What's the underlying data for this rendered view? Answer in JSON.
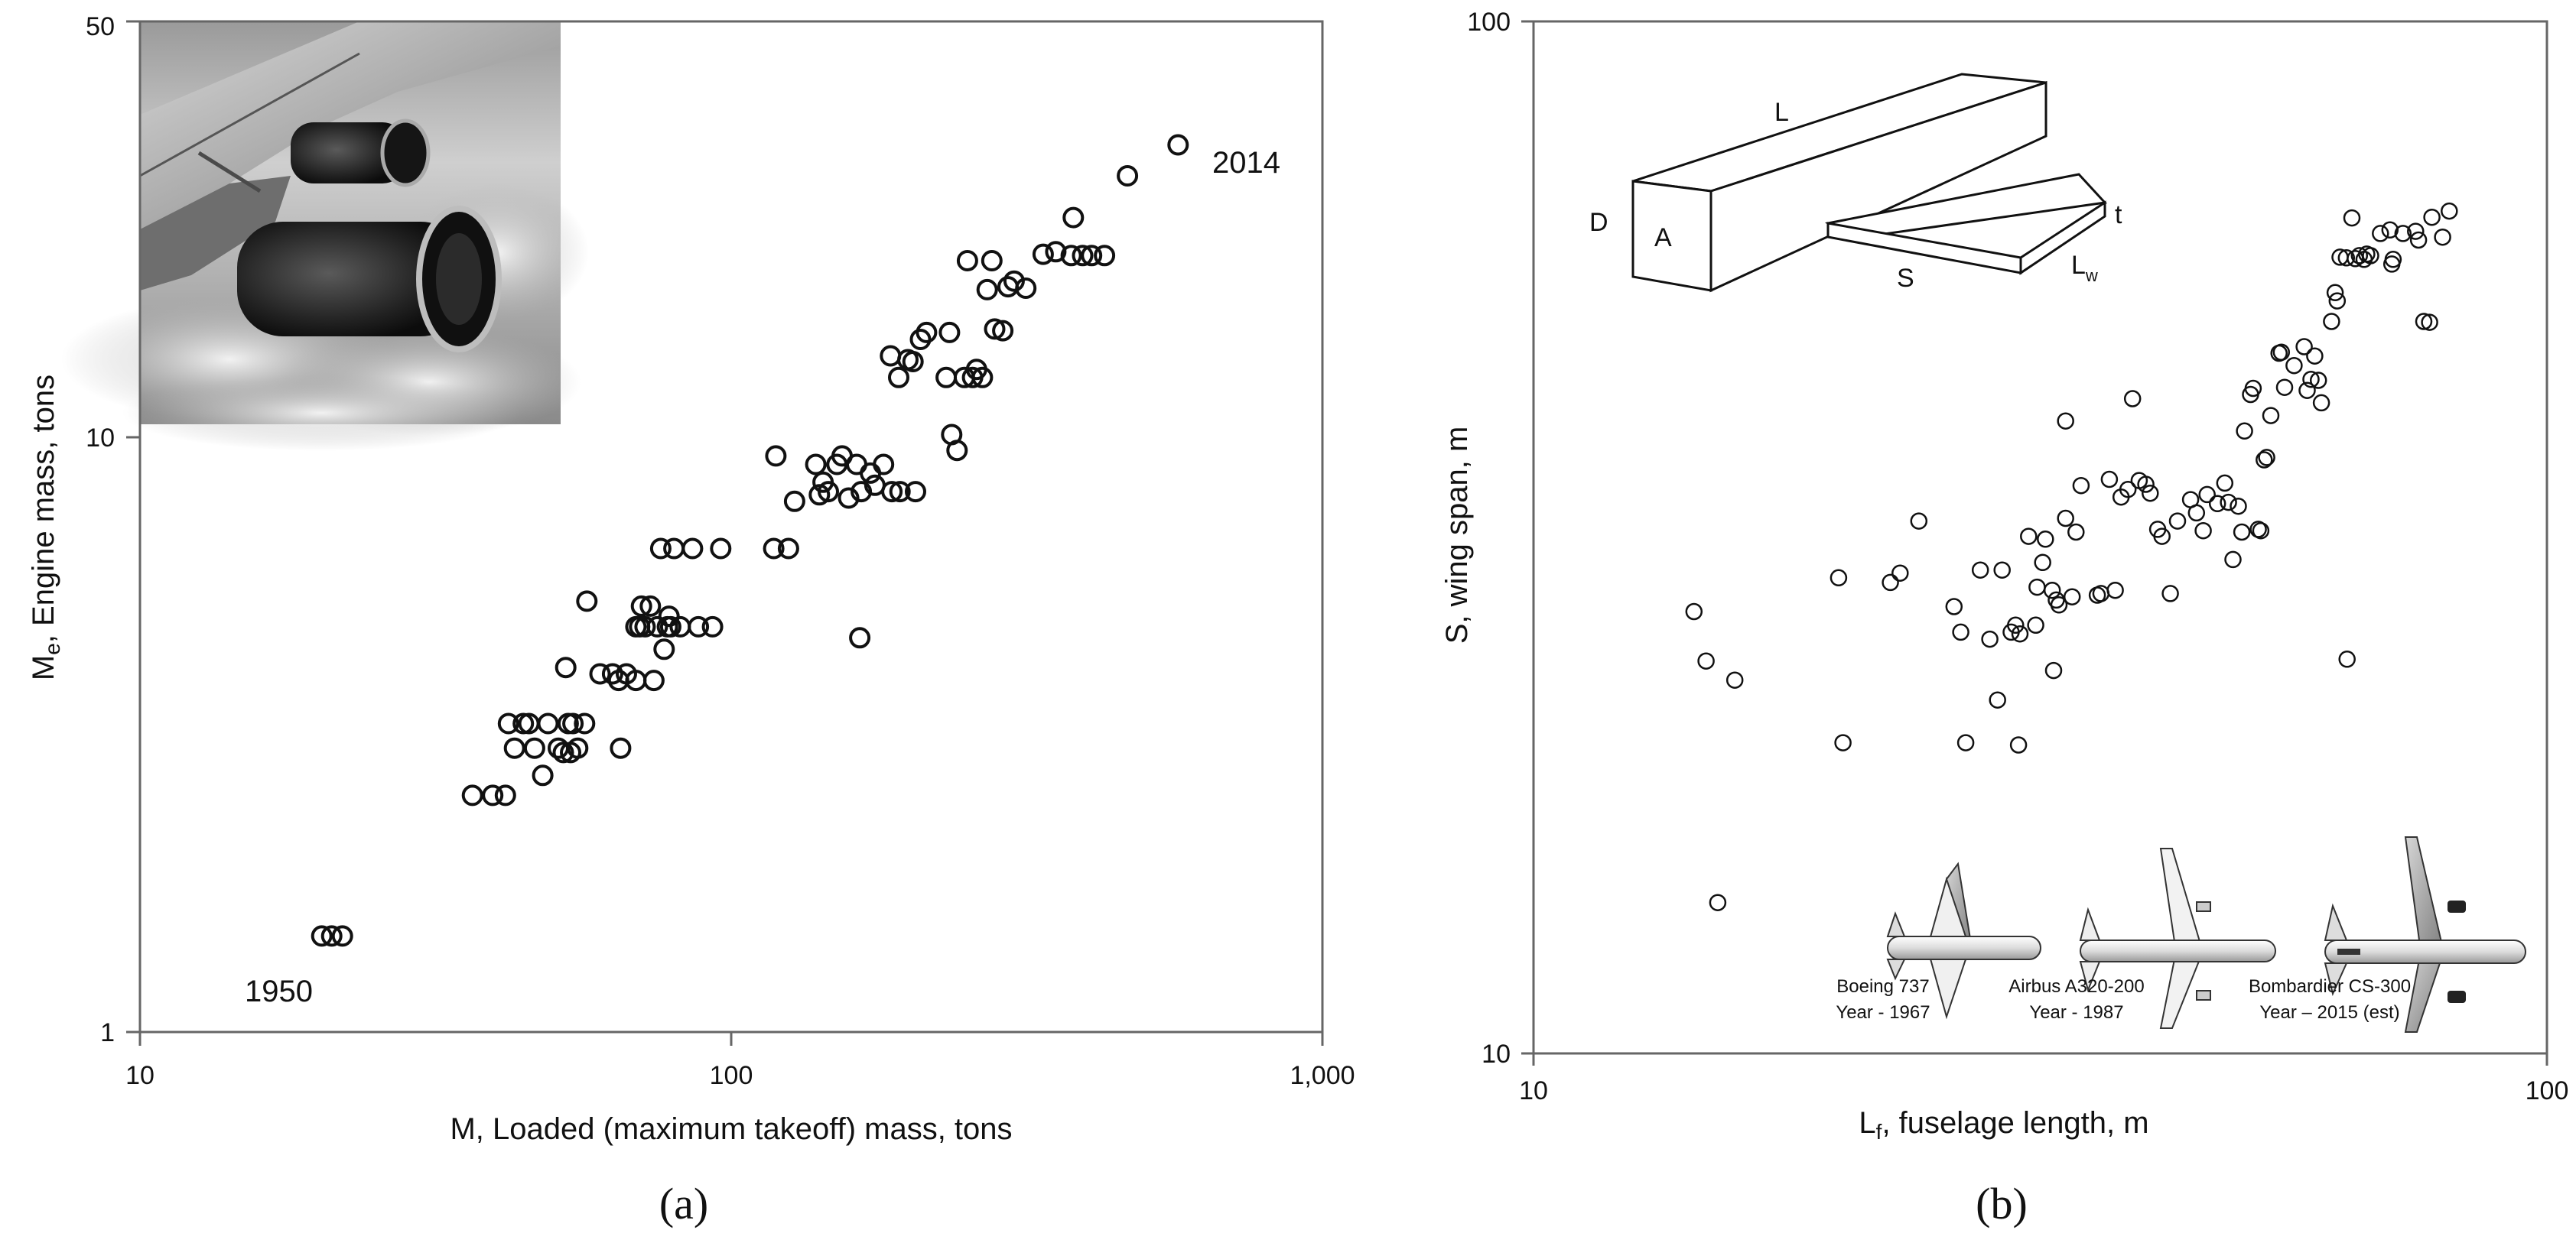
{
  "panels": {
    "a": {
      "caption": "(a)",
      "annotation_start": "1950",
      "annotation_end": "2014"
    },
    "b": {
      "caption": "(b)",
      "diagram_labels": {
        "L": "L",
        "D": "D",
        "A": "A",
        "t": "t",
        "S": "S",
        "Lw_main": "L",
        "Lw_sub": "w"
      },
      "aircraft": [
        {
          "name": "Boeing 737",
          "year": "Year - 1967"
        },
        {
          "name": "Airbus A320-200",
          "year": "Year - 1987"
        },
        {
          "name": "Bombardier CS-300",
          "year": "Year – 2015  (est)"
        }
      ]
    }
  },
  "chart_data": [
    {
      "type": "scatter",
      "title": "",
      "xlabel": "M, Loaded (maximum takeoff) mass, tons",
      "ylabel_main": "M",
      "ylabel_sub": "e",
      "ylabel_rest": ", Engine mass, tons",
      "xscale": "log",
      "yscale": "log",
      "xlim": [
        10,
        1000
      ],
      "ylim": [
        1,
        50
      ],
      "xticks": [
        10,
        100,
        1000
      ],
      "xtick_labels": [
        "10",
        "100",
        "1,000"
      ],
      "yticks": [
        1,
        10,
        50
      ],
      "ytick_labels": [
        "1",
        "10",
        "50"
      ],
      "grid": false,
      "inset_image": "jet-engine-wing-photo",
      "marker": "circle-open",
      "points": [
        [
          20.3,
          1.45
        ],
        [
          21.1,
          1.45
        ],
        [
          22,
          1.45
        ],
        [
          36.5,
          2.5
        ],
        [
          39.5,
          2.5
        ],
        [
          41.5,
          2.5
        ],
        [
          42,
          3.3
        ],
        [
          43,
          3.0
        ],
        [
          44.5,
          3.3
        ],
        [
          45.5,
          3.3
        ],
        [
          46.5,
          3.0
        ],
        [
          48,
          2.7
        ],
        [
          49,
          3.3
        ],
        [
          51,
          3.0
        ],
        [
          52,
          2.95
        ],
        [
          53,
          3.3
        ],
        [
          54,
          3.3
        ],
        [
          55,
          3.0
        ],
        [
          52.5,
          4.1
        ],
        [
          53.5,
          2.95
        ],
        [
          56.5,
          3.3
        ],
        [
          60,
          4.0
        ],
        [
          63,
          4.0
        ],
        [
          64.5,
          3.9
        ],
        [
          65,
          3.0
        ],
        [
          66.5,
          4.0
        ],
        [
          69,
          3.9
        ],
        [
          69,
          4.8
        ],
        [
          70,
          4.8
        ],
        [
          70.5,
          5.2
        ],
        [
          71.5,
          4.8
        ],
        [
          73,
          5.2
        ],
        [
          74,
          3.9
        ],
        [
          75,
          4.8
        ],
        [
          76,
          6.5
        ],
        [
          77,
          4.4
        ],
        [
          78,
          4.8
        ],
        [
          78.5,
          5.0
        ],
        [
          79,
          4.8
        ],
        [
          80,
          6.5
        ],
        [
          82,
          4.8
        ],
        [
          86,
          6.5
        ],
        [
          88,
          4.8
        ],
        [
          93,
          4.8
        ],
        [
          96,
          6.5
        ],
        [
          57,
          5.3
        ],
        [
          118,
          6.5
        ],
        [
          119,
          9.3
        ],
        [
          125,
          6.5
        ],
        [
          128,
          7.8
        ],
        [
          139,
          9.0
        ],
        [
          141,
          8.0
        ],
        [
          143,
          8.4
        ],
        [
          146,
          8.1
        ],
        [
          151,
          9.0
        ],
        [
          154,
          9.3
        ],
        [
          158,
          7.9
        ],
        [
          163,
          9.0
        ],
        [
          166,
          8.1
        ],
        [
          172,
          8.7
        ],
        [
          175,
          8.3
        ],
        [
          181,
          9.0
        ],
        [
          187,
          8.1
        ],
        [
          193,
          8.1
        ],
        [
          205,
          8.1
        ],
        [
          165,
          4.6
        ],
        [
          186,
          13.7
        ],
        [
          192,
          12.6
        ],
        [
          199,
          13.5
        ],
        [
          203,
          13.4
        ],
        [
          209,
          14.6
        ],
        [
          214,
          15
        ],
        [
          231,
          12.6
        ],
        [
          234,
          15
        ],
        [
          236,
          10.1
        ],
        [
          241,
          9.5
        ],
        [
          248,
          12.6
        ],
        [
          251,
          19.8
        ],
        [
          256,
          12.6
        ],
        [
          260,
          13
        ],
        [
          266,
          12.6
        ],
        [
          271,
          17.7
        ],
        [
          276,
          19.8
        ],
        [
          279,
          15.2
        ],
        [
          288,
          15.1
        ],
        [
          294,
          17.9
        ],
        [
          301,
          18.3
        ],
        [
          315,
          17.8
        ],
        [
          337,
          20.3
        ],
        [
          354,
          20.5
        ],
        [
          376,
          20.2
        ],
        [
          379,
          23.4
        ],
        [
          393,
          20.2
        ],
        [
          407,
          20.2
        ],
        [
          428,
          20.2
        ],
        [
          468,
          27.5
        ],
        [
          570,
          31.0
        ]
      ]
    },
    {
      "type": "scatter",
      "title": "",
      "xlabel_main": "L",
      "xlabel_sub": "f",
      "xlabel_rest": ", fuselage length, m",
      "ylabel": "S, wing span, m",
      "xscale": "log",
      "yscale": "log",
      "xlim": [
        10,
        100
      ],
      "ylim": [
        10,
        100
      ],
      "xticks": [
        10,
        100
      ],
      "xtick_labels": [
        "10",
        "100"
      ],
      "yticks": [
        10,
        100
      ],
      "ytick_labels": [
        "10",
        "100"
      ],
      "grid": false,
      "inset_image": "wing-fuselage-box-diagram-and-aircraft-silhouettes",
      "marker": "circle-open",
      "points": [
        [
          14.4,
          26.8
        ],
        [
          14.8,
          24.0
        ],
        [
          15.2,
          14.0
        ],
        [
          15.8,
          23.0
        ],
        [
          20.0,
          28.9
        ],
        [
          20.2,
          20.0
        ],
        [
          22.5,
          28.6
        ],
        [
          23.0,
          29.2
        ],
        [
          24.0,
          32.8
        ],
        [
          26.0,
          27.1
        ],
        [
          26.4,
          25.6
        ],
        [
          26.7,
          20.0
        ],
        [
          27.6,
          29.4
        ],
        [
          28.2,
          25.2
        ],
        [
          28.7,
          22.0
        ],
        [
          29.0,
          29.4
        ],
        [
          29.6,
          25.6
        ],
        [
          29.9,
          26.0
        ],
        [
          30.1,
          19.9
        ],
        [
          30.2,
          25.5
        ],
        [
          30.8,
          31.7
        ],
        [
          31.3,
          26.0
        ],
        [
          31.4,
          28.3
        ],
        [
          31.8,
          29.9
        ],
        [
          32.0,
          31.5
        ],
        [
          32.5,
          28.1
        ],
        [
          32.6,
          23.5
        ],
        [
          32.8,
          27.5
        ],
        [
          33.0,
          27.2
        ],
        [
          33.5,
          33.0
        ],
        [
          33.5,
          41.0
        ],
        [
          34.0,
          27.7
        ],
        [
          34.3,
          32.0
        ],
        [
          34.7,
          35.5
        ],
        [
          36.0,
          27.8
        ],
        [
          36.3,
          27.9
        ],
        [
          37.0,
          36.0
        ],
        [
          37.5,
          28.1
        ],
        [
          38.0,
          34.6
        ],
        [
          38.6,
          35.2
        ],
        [
          39.0,
          43.1
        ],
        [
          39.6,
          35.9
        ],
        [
          40.2,
          35.6
        ],
        [
          40.6,
          34.9
        ],
        [
          41.3,
          32.2
        ],
        [
          41.7,
          31.7
        ],
        [
          42.5,
          27.9
        ],
        [
          43.2,
          32.8
        ],
        [
          44.5,
          34.4
        ],
        [
          45.1,
          33.4
        ],
        [
          45.8,
          32.1
        ],
        [
          46.2,
          34.8
        ],
        [
          47.3,
          34.1
        ],
        [
          48.1,
          35.7
        ],
        [
          48.5,
          34.2
        ],
        [
          49.0,
          30.1
        ],
        [
          49.6,
          33.9
        ],
        [
          50.0,
          32.0
        ],
        [
          50.3,
          40.1
        ],
        [
          51.0,
          43.5
        ],
        [
          51.3,
          44.1
        ],
        [
          51.9,
          32.2
        ],
        [
          52.2,
          32.1
        ],
        [
          52.6,
          37.6
        ],
        [
          52.9,
          37.8
        ],
        [
          53.4,
          41.5
        ],
        [
          54.4,
          47.7
        ],
        [
          54.7,
          47.8
        ],
        [
          55.1,
          44.2
        ],
        [
          56.3,
          46.4
        ],
        [
          57.6,
          48.4
        ],
        [
          58.0,
          43.9
        ],
        [
          58.5,
          45.0
        ],
        [
          59.0,
          47.4
        ],
        [
          59.5,
          44.9
        ],
        [
          59.9,
          42.7
        ],
        [
          61.3,
          51.2
        ],
        [
          61.8,
          54.6
        ],
        [
          62.1,
          53.6
        ],
        [
          62.5,
          59.1
        ],
        [
          63.4,
          59.0
        ],
        [
          64.2,
          64.5
        ],
        [
          64.7,
          58.9
        ],
        [
          65.3,
          59.3
        ],
        [
          66.0,
          58.8
        ],
        [
          67.0,
          59.3
        ],
        [
          63.5,
          24.1
        ],
        [
          66.4,
          59.5
        ],
        [
          68.5,
          62.3
        ],
        [
          70.0,
          62.8
        ],
        [
          70.3,
          58.2
        ],
        [
          70.5,
          58.8
        ],
        [
          72.1,
          62.3
        ],
        [
          74.2,
          62.6
        ],
        [
          74.7,
          61.4
        ],
        [
          75.6,
          51.2
        ],
        [
          76.6,
          51.1
        ],
        [
          77.0,
          64.6
        ],
        [
          78.9,
          61.8
        ],
        [
          80.1,
          65.5
        ]
      ]
    }
  ]
}
